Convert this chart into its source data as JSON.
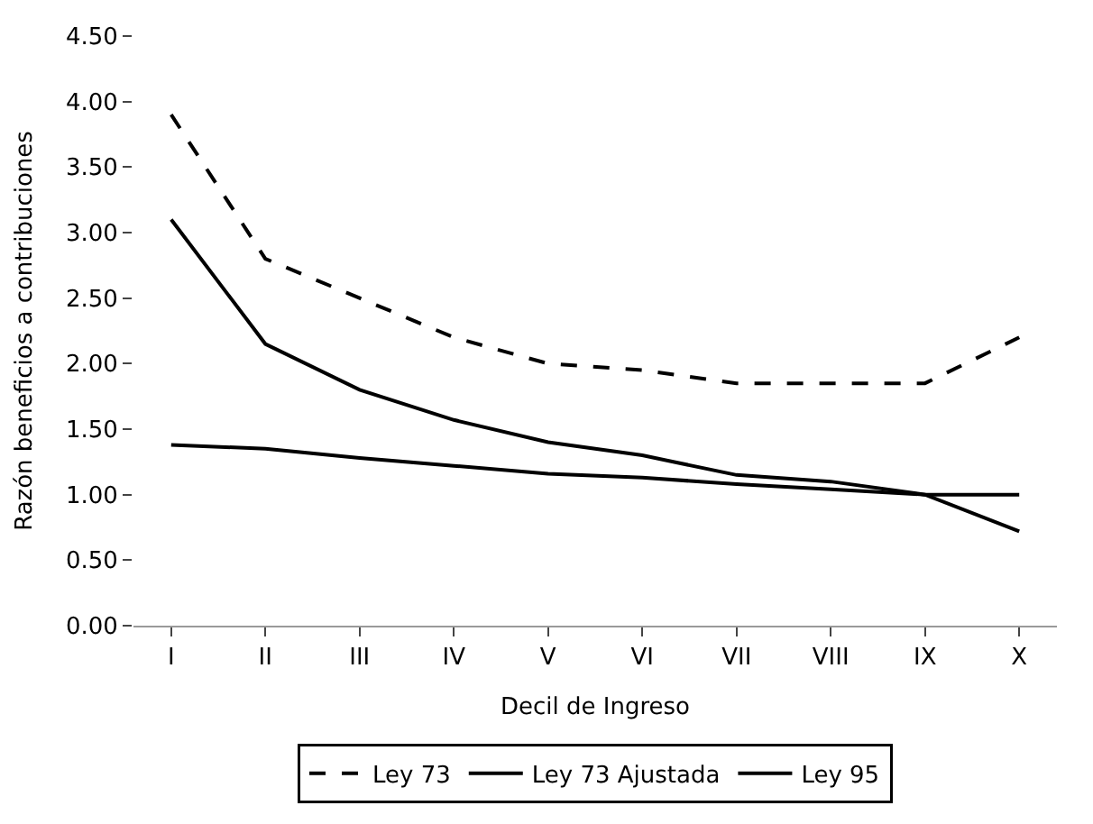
{
  "chart_data": {
    "type": "line",
    "xlabel": "Decil de Ingreso",
    "ylabel": "Razón beneficios a contribuciones",
    "categories": [
      "I",
      "II",
      "III",
      "IV",
      "V",
      "VI",
      "VII",
      "VIII",
      "IX",
      "X"
    ],
    "series": [
      {
        "name": "Ley 73",
        "color": "#000000",
        "line_style": "dashed",
        "values": [
          3.9,
          2.8,
          2.5,
          2.2,
          2.0,
          1.95,
          1.85,
          1.85,
          1.85,
          2.2
        ]
      },
      {
        "name": "Ley 73 Ajustada",
        "color": "#000000",
        "line_style": "solid",
        "values": [
          3.1,
          2.15,
          1.8,
          1.57,
          1.4,
          1.3,
          1.15,
          1.1,
          1.0,
          0.72
        ]
      },
      {
        "name": "Ley 95",
        "color": "#000000",
        "line_style": "solid",
        "values": [
          1.38,
          1.35,
          1.28,
          1.22,
          1.16,
          1.13,
          1.08,
          1.04,
          1.0,
          1.0
        ]
      }
    ],
    "ylim": [
      0,
      4.5
    ],
    "yticks": [
      {
        "value": 0,
        "label": "0.00"
      },
      {
        "value": 0.5,
        "label": "0.50"
      },
      {
        "value": 1,
        "label": "1.00"
      },
      {
        "value": 1.5,
        "label": "1.50"
      },
      {
        "value": 2,
        "label": "2.00"
      },
      {
        "value": 2.5,
        "label": "2.50"
      },
      {
        "value": 3,
        "label": "3.00"
      },
      {
        "value": 3.5,
        "label": "3.50"
      },
      {
        "value": 4,
        "label": "4.00"
      },
      {
        "value": 4.5,
        "label": "4.50"
      }
    ],
    "legend": "bottom",
    "marker": "none"
  }
}
